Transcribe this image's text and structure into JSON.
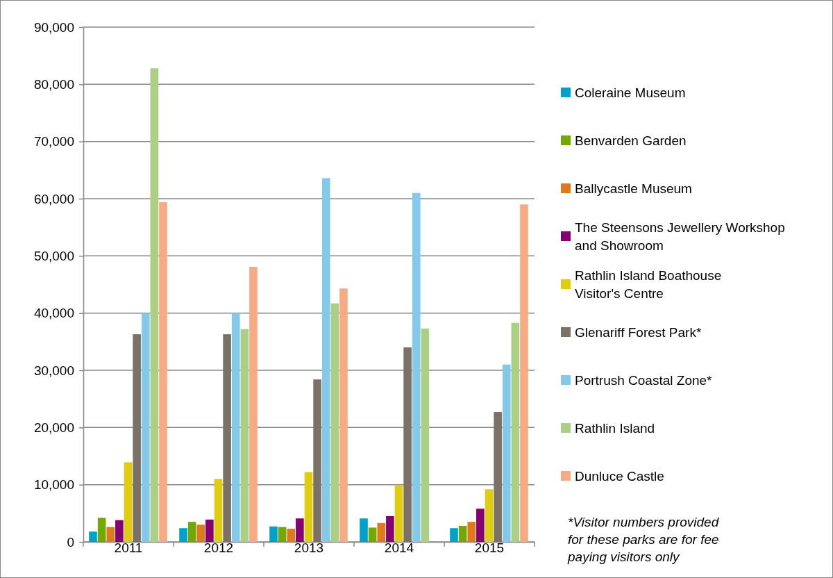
{
  "chart_data": {
    "type": "bar",
    "categories": [
      "2011",
      "2012",
      "2013",
      "2014",
      "2015"
    ],
    "series": [
      {
        "name": "Coleraine Museum",
        "color": "#00a2c9",
        "values": [
          1800,
          2400,
          2700,
          4100,
          2400
        ]
      },
      {
        "name": "Benvarden Garden",
        "color": "#73a800",
        "values": [
          4200,
          3500,
          2600,
          2500,
          2800
        ]
      },
      {
        "name": "Ballycastle Museum",
        "color": "#df7a1c",
        "values": [
          2600,
          3000,
          2300,
          3300,
          3500
        ]
      },
      {
        "name": "The Steensons Jewellery Workshop and Showroom",
        "color": "#870073",
        "values": [
          3800,
          3900,
          4100,
          4500,
          5800
        ]
      },
      {
        "name": "Rathlin Island Boathouse Visitor's Centre",
        "color": "#e2cc0f",
        "values": [
          13900,
          11000,
          12200,
          9900,
          9200
        ]
      },
      {
        "name": "Glenariff Forest Park*",
        "color": "#7b7167",
        "values": [
          36300,
          36300,
          28400,
          34000,
          22700
        ]
      },
      {
        "name": "Portrush Coastal Zone*",
        "color": "#84c8ea",
        "values": [
          40000,
          40000,
          63600,
          61000,
          31000
        ]
      },
      {
        "name": "Rathlin Island",
        "color": "#abcf85",
        "values": [
          82800,
          37200,
          41700,
          37300,
          38300
        ]
      },
      {
        "name": "Dunluce Castle",
        "color": "#f7ab84",
        "values": [
          59400,
          48100,
          44300,
          null,
          59000
        ]
      }
    ],
    "ylim": [
      0,
      90000
    ],
    "yticks": [
      {
        "value": 0,
        "label": "0"
      },
      {
        "value": 10000,
        "label": "10,000"
      },
      {
        "value": 20000,
        "label": "20,000"
      },
      {
        "value": 30000,
        "label": "30,000"
      },
      {
        "value": 40000,
        "label": "40,000"
      },
      {
        "value": 50000,
        "label": "50,000"
      },
      {
        "value": 60000,
        "label": "60,000"
      },
      {
        "value": 70000,
        "label": "70,000"
      },
      {
        "value": 80000,
        "label": "80,000"
      },
      {
        "value": 90000,
        "label": "90,000"
      }
    ],
    "grid": "y",
    "legend": "right",
    "annotations": [
      "*Visitor numbers provided for these parks are for fee paying visitors only"
    ]
  }
}
